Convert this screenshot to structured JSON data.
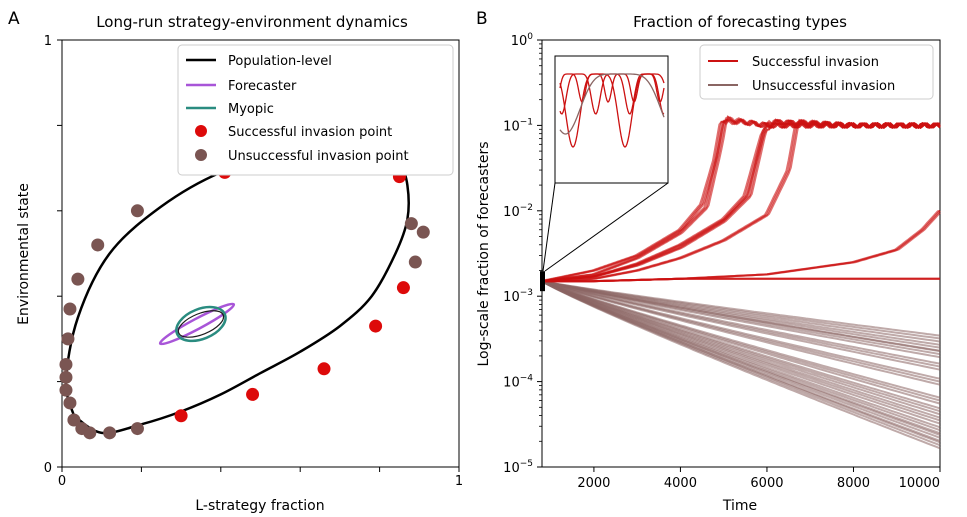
{
  "colors": {
    "population": "#000000",
    "forecaster": "#a855d8",
    "myopic": "#2a8c80",
    "success_point": "#dd0a0a",
    "fail_point": "#7a5552",
    "success_line": "#cc1111",
    "fail_line": "#8a6563"
  },
  "chart_data": [
    {
      "panel_label": "A",
      "type": "line",
      "title": "Long-run strategy-environment dynamics",
      "xlabel": "L-strategy fraction",
      "ylabel": "Environmental state",
      "xlim": [
        0,
        1
      ],
      "ylim": [
        0,
        1
      ],
      "x_ticks": [
        "0",
        "1"
      ],
      "y_ticks": [
        "0",
        "1"
      ],
      "grid": false,
      "legend_position": "top-right",
      "legend": [
        {
          "label": "Population-level",
          "kind": "line",
          "color_key": "population"
        },
        {
          "label": "Forecaster",
          "kind": "line",
          "color_key": "forecaster"
        },
        {
          "label": "Myopic",
          "kind": "line",
          "color_key": "myopic"
        },
        {
          "label": "Successful invasion point",
          "kind": "marker",
          "color_key": "success_point"
        },
        {
          "label": "Unsuccessful invasion point",
          "kind": "marker",
          "color_key": "fail_point"
        }
      ],
      "population_orbit": [
        [
          0.03,
          0.12
        ],
        [
          0.1,
          0.08
        ],
        [
          0.2,
          0.1
        ],
        [
          0.3,
          0.13
        ],
        [
          0.4,
          0.17
        ],
        [
          0.5,
          0.22
        ],
        [
          0.6,
          0.27
        ],
        [
          0.7,
          0.33
        ],
        [
          0.78,
          0.4
        ],
        [
          0.84,
          0.5
        ],
        [
          0.87,
          0.58
        ],
        [
          0.87,
          0.66
        ],
        [
          0.85,
          0.71
        ],
        [
          0.8,
          0.73
        ],
        [
          0.7,
          0.74
        ],
        [
          0.55,
          0.73
        ],
        [
          0.4,
          0.69
        ],
        [
          0.25,
          0.61
        ],
        [
          0.12,
          0.5
        ],
        [
          0.04,
          0.35
        ],
        [
          0.01,
          0.2
        ],
        [
          0.03,
          0.12
        ]
      ],
      "forecaster_orbit": {
        "center": [
          0.34,
          0.335
        ],
        "rx": 0.105,
        "ry": 0.012,
        "angle_deg": -28
      },
      "myopic_orbit": {
        "center": [
          0.35,
          0.335
        ],
        "rx": 0.065,
        "ry": 0.035,
        "angle_deg": -22
      },
      "successful_points": [
        [
          0.3,
          0.12
        ],
        [
          0.48,
          0.17
        ],
        [
          0.66,
          0.23
        ],
        [
          0.79,
          0.33
        ],
        [
          0.86,
          0.42
        ],
        [
          0.85,
          0.68
        ],
        [
          0.77,
          0.72
        ],
        [
          0.62,
          0.73
        ],
        [
          0.41,
          0.69
        ]
      ],
      "unsuccessful_points": [
        [
          0.19,
          0.6
        ],
        [
          0.09,
          0.52
        ],
        [
          0.04,
          0.44
        ],
        [
          0.02,
          0.37
        ],
        [
          0.015,
          0.3
        ],
        [
          0.01,
          0.24
        ],
        [
          0.01,
          0.21
        ],
        [
          0.01,
          0.18
        ],
        [
          0.02,
          0.15
        ],
        [
          0.03,
          0.11
        ],
        [
          0.05,
          0.09
        ],
        [
          0.07,
          0.08
        ],
        [
          0.12,
          0.08
        ],
        [
          0.19,
          0.09
        ],
        [
          0.88,
          0.57
        ],
        [
          0.91,
          0.55
        ],
        [
          0.89,
          0.48
        ]
      ]
    },
    {
      "panel_label": "B",
      "type": "line",
      "title": "Fraction of forecasting types",
      "xlabel": "Time",
      "ylabel": "Log-scale fraction of forecasters",
      "xlim": [
        800,
        10000
      ],
      "ylim": [
        1e-05,
        1
      ],
      "y_scale": "log",
      "x_ticks": [
        2000,
        4000,
        6000,
        8000,
        10000
      ],
      "y_tick_bases": [
        "10",
        "10",
        "10",
        "10",
        "10",
        "10"
      ],
      "y_tick_exponents": [
        "0",
        "−1",
        "−2",
        "−3",
        "−4",
        "−5"
      ],
      "grid": false,
      "legend_position": "top-right",
      "legend": [
        {
          "label": "Successful invasion",
          "color_key": "success_line"
        },
        {
          "label": "Unsuccessful invasion",
          "color_key": "fail_line"
        }
      ],
      "start": {
        "time": 800,
        "value": 0.0015
      },
      "successful_series": [
        {
          "points": [
            [
              800,
              0.0015
            ],
            [
              2000,
              0.002
            ],
            [
              3000,
              0.003
            ],
            [
              4000,
              0.006
            ],
            [
              4500,
              0.012
            ],
            [
              4800,
              0.04
            ],
            [
              4950,
              0.11
            ],
            [
              5400,
              0.11
            ],
            [
              6000,
              0.1
            ],
            [
              8000,
              0.1
            ],
            [
              10000,
              0.1
            ]
          ]
        },
        {
          "points": [
            [
              800,
              0.0015
            ],
            [
              2000,
              0.0018
            ],
            [
              3000,
              0.0028
            ],
            [
              4000,
              0.0055
            ],
            [
              4600,
              0.011
            ],
            [
              4900,
              0.05
            ],
            [
              5050,
              0.12
            ],
            [
              5500,
              0.11
            ],
            [
              6000,
              0.1
            ],
            [
              8000,
              0.1
            ],
            [
              10000,
              0.1
            ]
          ]
        },
        {
          "points": [
            [
              800,
              0.0015
            ],
            [
              2000,
              0.0017
            ],
            [
              3000,
              0.0024
            ],
            [
              4000,
              0.004
            ],
            [
              5000,
              0.008
            ],
            [
              5500,
              0.015
            ],
            [
              5900,
              0.08
            ],
            [
              6100,
              0.11
            ],
            [
              8000,
              0.1
            ],
            [
              10000,
              0.1
            ]
          ]
        },
        {
          "points": [
            [
              800,
              0.0015
            ],
            [
              2000,
              0.0017
            ],
            [
              3000,
              0.0023
            ],
            [
              4000,
              0.0037
            ],
            [
              5000,
              0.0075
            ],
            [
              5600,
              0.015
            ],
            [
              5950,
              0.09
            ],
            [
              6150,
              0.11
            ],
            [
              8000,
              0.1
            ],
            [
              10000,
              0.1
            ]
          ]
        },
        {
          "points": [
            [
              800,
              0.0015
            ],
            [
              2000,
              0.0016
            ],
            [
              3000,
              0.002
            ],
            [
              4000,
              0.0028
            ],
            [
              5000,
              0.0045
            ],
            [
              6000,
              0.009
            ],
            [
              6500,
              0.03
            ],
            [
              6700,
              0.11
            ],
            [
              8000,
              0.1
            ],
            [
              10000,
              0.1
            ]
          ]
        },
        {
          "points": [
            [
              800,
              0.0015
            ],
            [
              2000,
              0.0015
            ],
            [
              4000,
              0.0016
            ],
            [
              6000,
              0.0018
            ],
            [
              8000,
              0.0025
            ],
            [
              9000,
              0.0035
            ],
            [
              9600,
              0.006
            ],
            [
              10000,
              0.01
            ]
          ]
        },
        {
          "points": [
            [
              800,
              0.0015
            ],
            [
              2000,
              0.0015
            ],
            [
              4000,
              0.0016
            ],
            [
              6000,
              0.0016
            ],
            [
              8000,
              0.0016
            ],
            [
              10000,
              0.0016
            ]
          ]
        }
      ],
      "unsuccessful_series": [
        {
          "end": 0.00032
        },
        {
          "end": 0.00025
        },
        {
          "end": 0.00021
        },
        {
          "end": 0.00015
        },
        {
          "end": 0.0001
        },
        {
          "end": 6e-05
        },
        {
          "end": 4.5e-05
        },
        {
          "end": 3.5e-05
        },
        {
          "end": 2.7e-05
        },
        {
          "end": 2.2e-05
        },
        {
          "end": 1.8e-05
        }
      ],
      "inset": {
        "successful_curves": 3,
        "unsuccessful_curves": 1
      }
    }
  ]
}
